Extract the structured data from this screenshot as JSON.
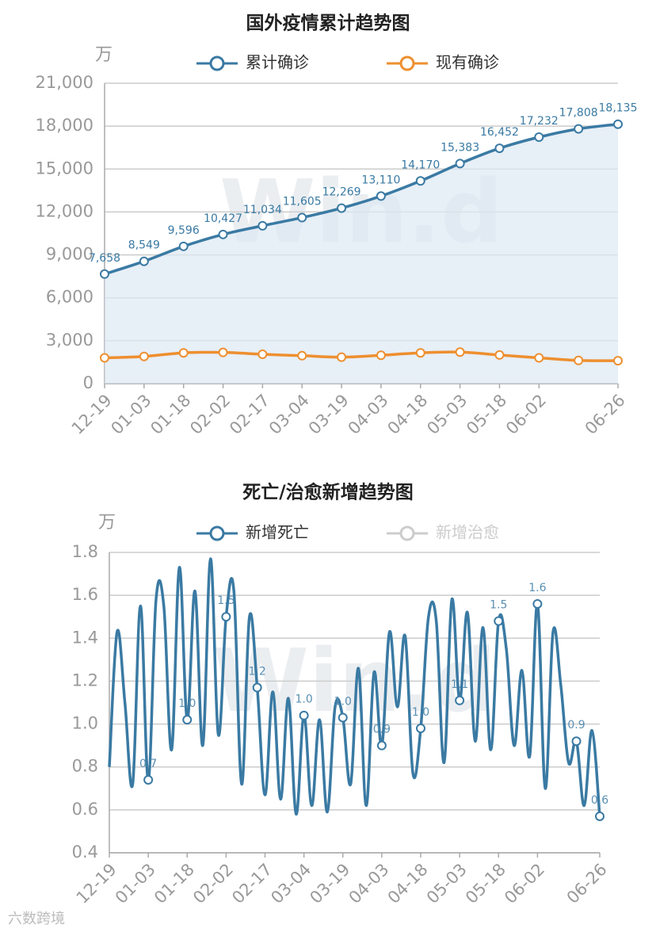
{
  "chart_data": [
    {
      "type": "line",
      "title": "国外疫情累计趋势图",
      "y_unit": "万",
      "watermark": "Win.d",
      "area": true,
      "grid": true,
      "categories": [
        "12-19",
        "01-03",
        "01-18",
        "02-02",
        "02-17",
        "03-04",
        "03-19",
        "04-03",
        "04-18",
        "05-03",
        "05-18",
        "06-02",
        null,
        "06-26"
      ],
      "series": [
        {
          "name": "累计确诊",
          "color": "#3a7aa3",
          "values": [
            7658,
            8549,
            9596,
            10427,
            11034,
            11605,
            12269,
            13110,
            14170,
            15383,
            16452,
            17232,
            17808,
            18135
          ],
          "value_labels": [
            "7,658",
            "8,549",
            "9,596",
            "10,427",
            "11,034",
            "11,605",
            "12,269",
            "13,110",
            "14,170",
            "15,383",
            "16,452",
            "17,232",
            "17,808",
            "18,135"
          ]
        },
        {
          "name": "现有确诊",
          "color": "#ee8f2f",
          "values": [
            1800,
            1900,
            2150,
            2180,
            2050,
            1950,
            1850,
            1980,
            2150,
            2200,
            2000,
            1800,
            1620,
            1600
          ]
        }
      ],
      "ylim": [
        0,
        21000
      ],
      "yticks": [
        0,
        {
          "value": 3000,
          "label": "3,000"
        },
        {
          "value": 6000,
          "label": "6,000"
        },
        {
          "value": 9000,
          "label": "9,000"
        },
        {
          "value": 12000,
          "label": "12,000"
        },
        {
          "value": 15000,
          "label": "15,000"
        },
        {
          "value": 18000,
          "label": "18,000"
        },
        {
          "value": 21000,
          "label": "21,000"
        }
      ]
    },
    {
      "type": "line",
      "title": "死亡/治愈新增趋势图",
      "y_unit": "万",
      "watermark": "Win.d",
      "area": false,
      "grid": true,
      "categories": [
        "12-19",
        null,
        null,
        null,
        null,
        "01-03",
        null,
        null,
        null,
        null,
        "01-18",
        null,
        null,
        null,
        null,
        "02-02",
        null,
        null,
        null,
        null,
        "02-17",
        null,
        null,
        null,
        null,
        "03-04",
        null,
        null,
        null,
        null,
        "03-19",
        null,
        null,
        null,
        null,
        "04-03",
        null,
        null,
        null,
        null,
        "04-18",
        null,
        null,
        null,
        null,
        "05-03",
        null,
        null,
        null,
        null,
        "05-18",
        null,
        null,
        null,
        null,
        "06-02",
        null,
        null,
        null,
        null,
        null,
        null,
        null,
        "06-26"
      ],
      "series": [
        {
          "name": "新增死亡",
          "color": "#3a7aa3",
          "values": [
            0.8,
            1.43,
            1.1,
            0.72,
            1.55,
            0.74,
            1.58,
            1.55,
            0.88,
            1.73,
            1.02,
            1.62,
            0.9,
            1.77,
            0.95,
            1.5,
            1.62,
            0.72,
            1.5,
            1.17,
            0.67,
            1.15,
            0.65,
            1.12,
            0.58,
            1.04,
            0.62,
            1.02,
            0.59,
            1.08,
            1.03,
            0.72,
            1.26,
            0.62,
            1.24,
            0.9,
            1.43,
            1.08,
            1.41,
            0.77,
            0.98,
            1.5,
            1.48,
            0.82,
            1.58,
            1.11,
            1.52,
            0.92,
            1.45,
            0.88,
            1.48,
            1.35,
            0.9,
            1.25,
            0.85,
            1.56,
            0.7,
            1.43,
            1.18,
            0.82,
            0.92,
            0.62,
            0.97,
            0.57
          ],
          "value_labels": [
            null,
            null,
            null,
            null,
            null,
            "0.7",
            null,
            null,
            null,
            null,
            "1.0",
            null,
            null,
            null,
            null,
            "1.5",
            null,
            null,
            null,
            "1.2",
            null,
            null,
            null,
            null,
            null,
            "1.0",
            null,
            null,
            null,
            null,
            "1.0",
            null,
            null,
            null,
            null,
            "0.9",
            null,
            null,
            null,
            null,
            "1.0",
            null,
            null,
            null,
            null,
            "1.1",
            null,
            null,
            null,
            null,
            "1.5",
            null,
            null,
            null,
            null,
            "1.6",
            null,
            null,
            null,
            null,
            "0.9",
            null,
            null,
            "0.6"
          ]
        },
        {
          "name": "新增治愈",
          "color": "#cccccc",
          "visible": false
        }
      ],
      "ylim": [
        0.4,
        1.8
      ],
      "yticks": [
        0.4,
        0.6,
        0.8,
        {
          "value": 1,
          "label": "1.0"
        },
        1.2,
        1.4,
        1.6,
        1.8
      ]
    }
  ],
  "footer": "六数跨境"
}
